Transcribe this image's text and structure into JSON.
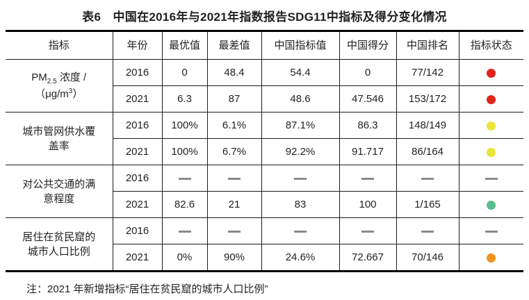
{
  "title": "表6　中国在2016年与2021年指数报告SDG11中指标及得分变化情况",
  "columns": [
    "指标",
    "年份",
    "最优值",
    "最差值",
    "中国指标值",
    "中国得分",
    "中国排名",
    "指标状态"
  ],
  "status_colors": {
    "red": "#e2241b",
    "yellow": "#ebe43a",
    "green": "#58bc8d",
    "orange": "#f0931d"
  },
  "groups": [
    {
      "indicator_plain": "PM2.5 浓度 /（μg/m3）",
      "indicator": [
        {
          "t": "PM"
        },
        {
          "sub": "2.5"
        },
        {
          "t": " 浓度 /"
        },
        {
          "br": true
        },
        {
          "t": "（μg/m"
        },
        {
          "sup": "3"
        },
        {
          "t": "）"
        }
      ],
      "rows": [
        {
          "year": "2016",
          "best": "0",
          "worst": "48.4",
          "value": "54.4",
          "score": "0",
          "rank": "77/142",
          "status": "red"
        },
        {
          "year": "2021",
          "best": "6.3",
          "worst": "87",
          "value": "48.6",
          "score": "47.546",
          "rank": "153/172",
          "status": "red"
        }
      ]
    },
    {
      "indicator_plain": "城市管网供水覆盖率",
      "indicator": [
        {
          "t": "城市管网供水覆"
        },
        {
          "br": true
        },
        {
          "t": "盖率"
        }
      ],
      "rows": [
        {
          "year": "2016",
          "best": "100%",
          "worst": "6.1%",
          "value": "87.1%",
          "score": "86.3",
          "rank": "148/149",
          "status": "yellow"
        },
        {
          "year": "2021",
          "best": "100%",
          "worst": "6.7%",
          "value": "92.2%",
          "score": "91.717",
          "rank": "86/164",
          "status": "yellow"
        }
      ]
    },
    {
      "indicator_plain": "对公共交通的满意程度",
      "indicator": [
        {
          "t": "对公共交通的满"
        },
        {
          "br": true
        },
        {
          "t": "意程度"
        }
      ],
      "rows": [
        {
          "year": "2016",
          "best": "—",
          "worst": "—",
          "value": "—",
          "score": "—",
          "rank": "—",
          "status": "—"
        },
        {
          "year": "2021",
          "best": "82.6",
          "worst": "21",
          "value": "83",
          "score": "100",
          "rank": "1/165",
          "status": "green"
        }
      ]
    },
    {
      "indicator_plain": "居住在贫民窟的城市人口比例",
      "indicator": [
        {
          "t": "居住在贫民窟的"
        },
        {
          "br": true
        },
        {
          "t": "城市人口比例"
        }
      ],
      "rows": [
        {
          "year": "2016",
          "best": "—",
          "worst": "—",
          "value": "—",
          "score": "—",
          "rank": "—",
          "status": "—"
        },
        {
          "year": "2021",
          "best": "0%",
          "worst": "90%",
          "value": "24.6%",
          "score": "72.667",
          "rank": "70/146",
          "status": "orange"
        }
      ]
    }
  ],
  "note": "注：2021 年新增指标“居住在贫民窟的城市人口比例”"
}
